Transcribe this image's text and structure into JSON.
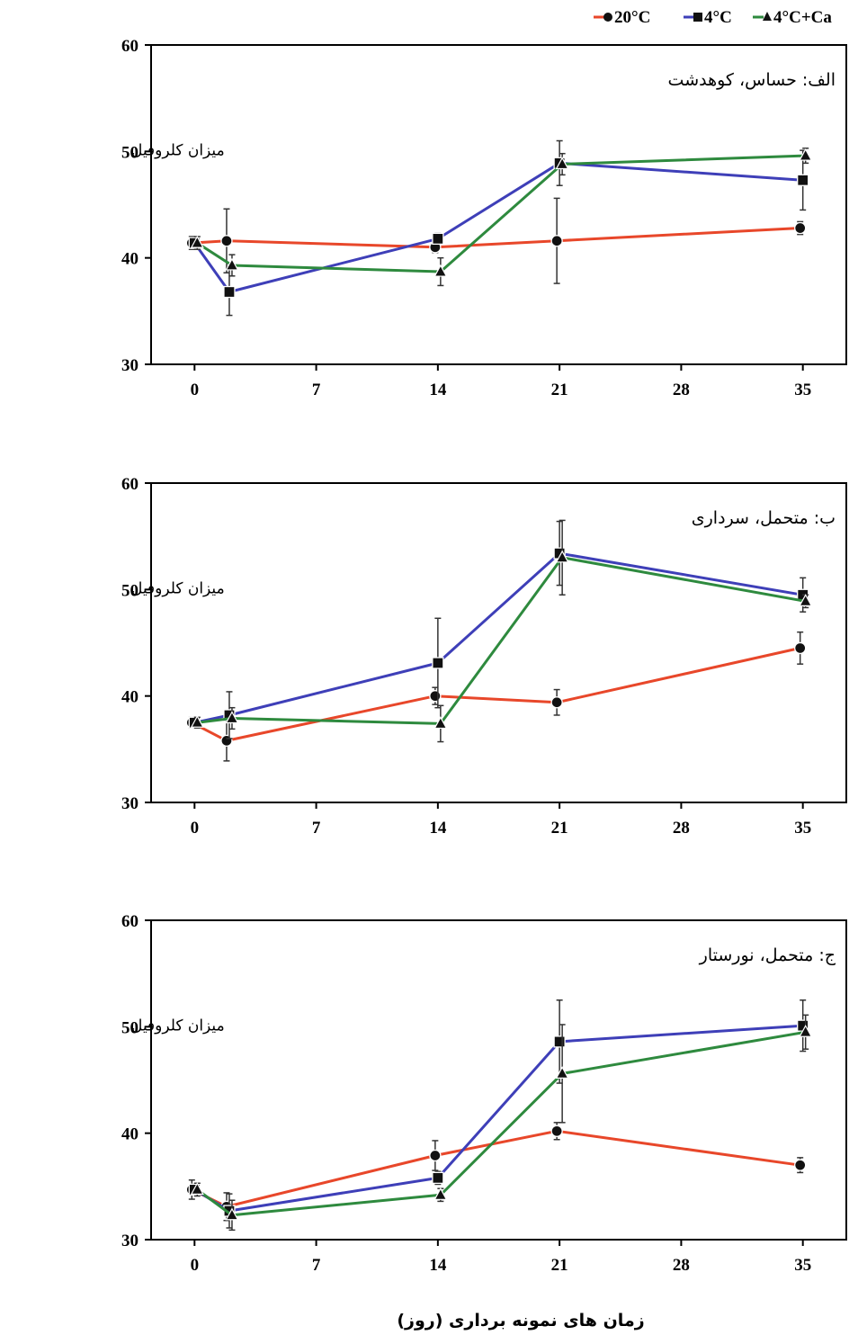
{
  "legend": {
    "items": [
      {
        "label": "20°C",
        "color": "#e8472a",
        "marker": "circle"
      },
      {
        "label": "4°C",
        "color": "#3e3fb8",
        "marker": "square"
      },
      {
        "label": "4°C+Ca",
        "color": "#2e8a3e",
        "marker": "triangle"
      }
    ]
  },
  "x_axis_label": "زمان های نمونه برداری (روز)",
  "chart_data": [
    {
      "type": "line",
      "title": "الف: حساس، کوهدشت",
      "ylabel": "میزان کلروفیل",
      "xlabel": "",
      "ylim": [
        30,
        60
      ],
      "xlim": [
        -2.5,
        37.5
      ],
      "xticks": [
        0,
        7,
        14,
        21,
        28,
        35
      ],
      "yticks": [
        30,
        40,
        50,
        60
      ],
      "grid": false,
      "legend_position": "top-right",
      "x": [
        0,
        2,
        14,
        21,
        35
      ],
      "series": [
        {
          "name": "20°C",
          "color": "#e8472a",
          "marker": "circle",
          "values": [
            41.4,
            41.6,
            41.0,
            41.6,
            42.8
          ],
          "errors": [
            0.6,
            3.0,
            0.5,
            4.0,
            0.6
          ]
        },
        {
          "name": "4°C",
          "color": "#3e3fb8",
          "marker": "square",
          "values": [
            41.4,
            36.8,
            41.8,
            48.9,
            47.3
          ],
          "errors": [
            0.5,
            2.2,
            0.5,
            2.1,
            2.8
          ]
        },
        {
          "name": "4°C+Ca",
          "color": "#2e8a3e",
          "marker": "triangle",
          "values": [
            41.4,
            39.3,
            38.7,
            48.8,
            49.6
          ],
          "errors": [
            0.6,
            1.0,
            1.3,
            1.0,
            0.7
          ]
        }
      ]
    },
    {
      "type": "line",
      "title": "ب: متحمل، سرداری",
      "ylabel": "میزان کلروفیل",
      "xlabel": "",
      "ylim": [
        30,
        60
      ],
      "xlim": [
        -2.5,
        37.5
      ],
      "xticks": [
        0,
        7,
        14,
        21,
        28,
        35
      ],
      "yticks": [
        30,
        40,
        50,
        60
      ],
      "grid": false,
      "x": [
        0,
        2,
        14,
        21,
        35
      ],
      "series": [
        {
          "name": "20°C",
          "color": "#e8472a",
          "marker": "circle",
          "values": [
            37.5,
            35.8,
            40.0,
            39.4,
            44.5
          ],
          "errors": [
            0.5,
            1.9,
            0.8,
            1.2,
            1.5
          ]
        },
        {
          "name": "4°C",
          "color": "#3e3fb8",
          "marker": "square",
          "values": [
            37.5,
            38.2,
            43.1,
            53.4,
            49.5
          ],
          "errors": [
            0.4,
            2.2,
            4.2,
            3.0,
            1.6
          ]
        },
        {
          "name": "4°C+Ca",
          "color": "#2e8a3e",
          "marker": "triangle",
          "values": [
            37.5,
            37.9,
            37.4,
            53.0,
            48.9
          ],
          "errors": [
            0.5,
            1.0,
            1.7,
            3.5,
            0.6
          ]
        }
      ]
    },
    {
      "type": "line",
      "title": "ج: متحمل، نورستار",
      "ylabel": "میزان کلروفیل",
      "xlabel": "",
      "ylim": [
        30,
        60
      ],
      "xlim": [
        -2.5,
        37.5
      ],
      "xticks": [
        0,
        7,
        14,
        21,
        28,
        35
      ],
      "yticks": [
        30,
        40,
        50,
        60
      ],
      "grid": false,
      "x": [
        0,
        2,
        14,
        21,
        35
      ],
      "series": [
        {
          "name": "20°C",
          "color": "#e8472a",
          "marker": "circle",
          "values": [
            34.7,
            33.1,
            37.9,
            40.2,
            37.0
          ],
          "errors": [
            0.9,
            1.3,
            1.4,
            0.8,
            0.7
          ]
        },
        {
          "name": "4°C",
          "color": "#3e3fb8",
          "marker": "square",
          "values": [
            34.7,
            32.7,
            35.8,
            48.6,
            50.1
          ],
          "errors": [
            0.5,
            1.6,
            0.6,
            3.9,
            2.4
          ]
        },
        {
          "name": "4°C+Ca",
          "color": "#2e8a3e",
          "marker": "triangle",
          "values": [
            34.7,
            32.3,
            34.2,
            45.6,
            49.5
          ],
          "errors": [
            0.6,
            1.4,
            0.6,
            4.6,
            1.6
          ]
        }
      ]
    }
  ]
}
